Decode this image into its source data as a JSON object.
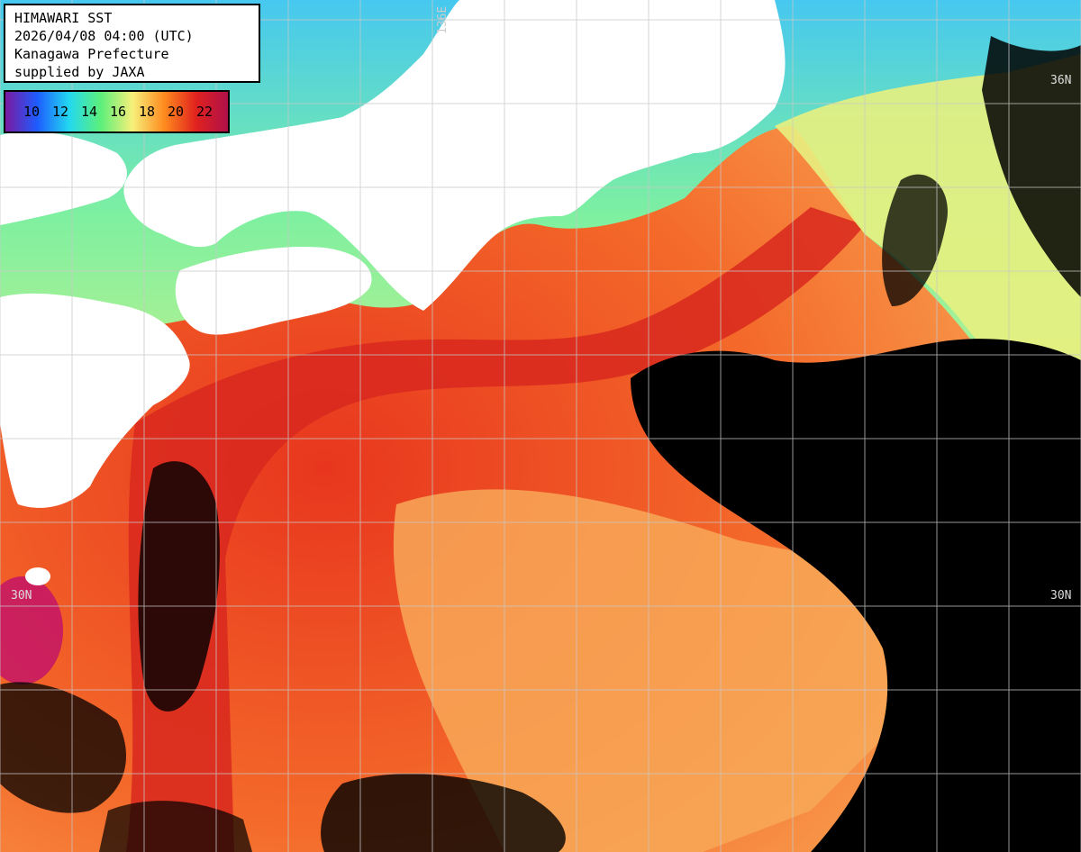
{
  "info": {
    "title": "HIMAWARI SST",
    "datetime": "2026/04/08 04:00 (UTC)",
    "org": "Kanagawa Prefecture",
    "credit": "supplied by JAXA"
  },
  "legend": {
    "labels": [
      "10",
      "12",
      "14",
      "16",
      "18",
      "20",
      "22"
    ],
    "colors": [
      "#7a1aa0",
      "#1e5cff",
      "#22d8f0",
      "#5cf07a",
      "#f6f07a",
      "#ff8a1e",
      "#e0221e",
      "#b0104a"
    ]
  },
  "grid": {
    "lat_labels": [
      "36N",
      "30N",
      "30N"
    ],
    "lon_label": "136E"
  },
  "map_colors": {
    "land": "#ffffff",
    "nodata": "#000000",
    "warm": "#f0501e",
    "hot": "#dc2a1e",
    "mild": "#f8a45a",
    "cool": "#8cf08c",
    "cold": "#3cb4f0",
    "grid": "#c8c8c8"
  }
}
